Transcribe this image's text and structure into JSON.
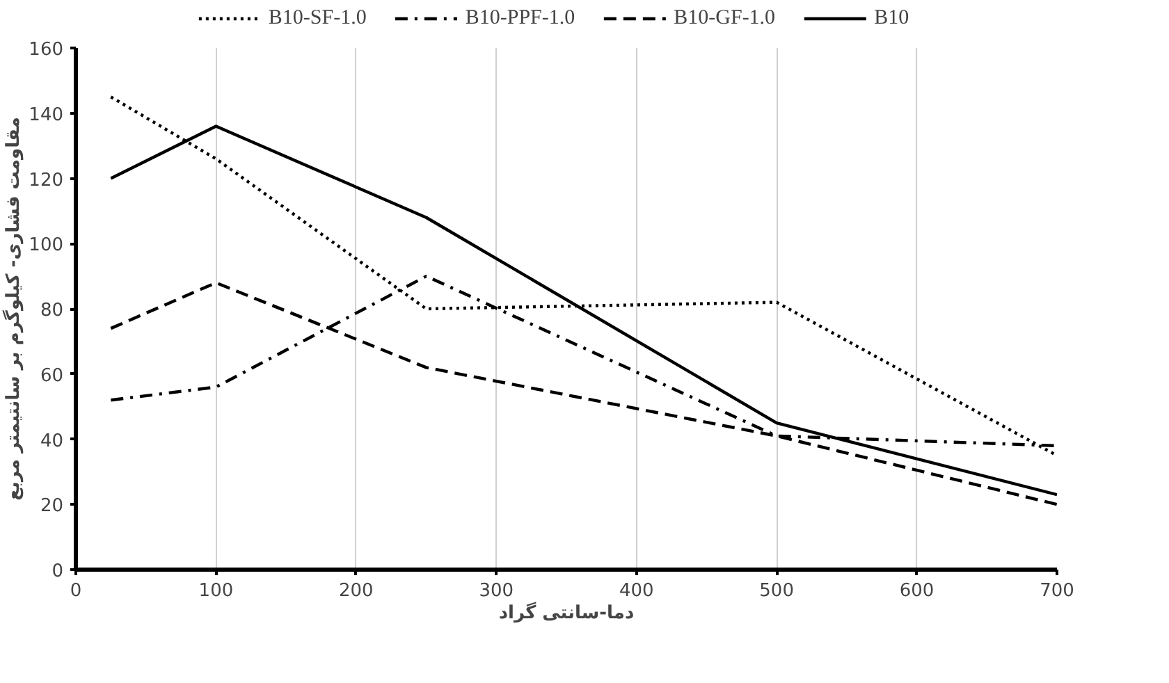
{
  "chart_data": {
    "type": "line",
    "xlabel": "دما-سانتی گراد",
    "ylabel": "مقاومت فشاری- کیلوگرم بر سانتیمتر مربع",
    "x": [
      25,
      100,
      250,
      500,
      700
    ],
    "series": [
      {
        "name": "B10-SF-1.0",
        "color": "#000000",
        "line_style": "dotted",
        "values": [
          145,
          126,
          80,
          82,
          35
        ]
      },
      {
        "name": "B10-PPF-1.0",
        "color": "#000000",
        "line_style": "dashdot",
        "values": [
          52,
          56,
          90,
          41,
          38
        ]
      },
      {
        "name": "B10-GF-1.0",
        "color": "#000000",
        "line_style": "dashed",
        "values": [
          74,
          88,
          62,
          41,
          20
        ]
      },
      {
        "name": "B10",
        "color": "#000000",
        "line_style": "solid",
        "values": [
          120,
          136,
          108,
          45,
          23
        ]
      }
    ],
    "xlim": [
      0,
      700
    ],
    "xticks": [
      0,
      100,
      200,
      300,
      400,
      500,
      600,
      700
    ],
    "ylim": [
      0,
      160
    ],
    "yticks": [
      0,
      20,
      40,
      60,
      80,
      100,
      120,
      140,
      160
    ],
    "grid": "x",
    "legend": "top",
    "marker": "none"
  }
}
